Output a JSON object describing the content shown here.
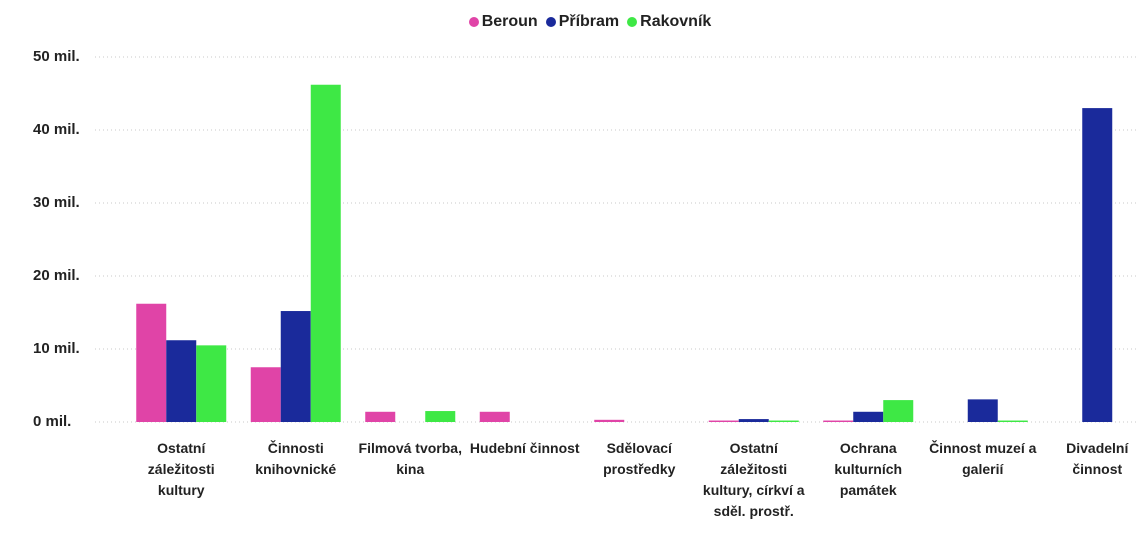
{
  "chart_data": {
    "type": "bar",
    "categories": [
      "Ostatní záležitosti kultury",
      "Činnosti knihovnické",
      "Filmová tvorba, kina",
      "Hudební činnost",
      "Sdělovací prostředky",
      "Ostatní záležitosti kultury, církví a sděl. prostř.",
      "Ochrana kulturních památek",
      "Činnost muzeí a galerií",
      "Divadelní činnost"
    ],
    "series": [
      {
        "name": "Beroun",
        "color": "#e044a7",
        "values": [
          16.2,
          7.5,
          1.4,
          1.4,
          0.3,
          0.2,
          0.2,
          null,
          null
        ]
      },
      {
        "name": "Příbram",
        "color": "#1a2a9b",
        "values": [
          11.2,
          15.2,
          null,
          null,
          null,
          0.4,
          1.4,
          3.1,
          43.0
        ]
      },
      {
        "name": "Rakovník",
        "color": "#3ee845",
        "values": [
          10.5,
          46.2,
          1.5,
          null,
          null,
          0.2,
          3.0,
          0.2,
          null
        ]
      }
    ],
    "ylim": [
      0,
      50
    ],
    "yticks": [
      {
        "value": 0,
        "label": "0 mil."
      },
      {
        "value": 10,
        "label": "10 mil."
      },
      {
        "value": 20,
        "label": "20 mil."
      },
      {
        "value": 30,
        "label": "30 mil."
      },
      {
        "value": 40,
        "label": "40 mil."
      },
      {
        "value": 50,
        "label": "50 mil."
      }
    ],
    "grid": true
  }
}
